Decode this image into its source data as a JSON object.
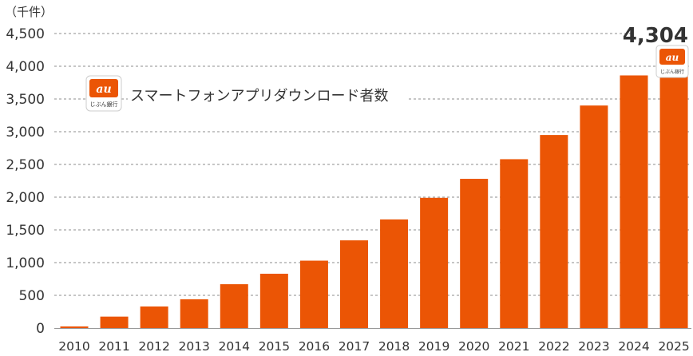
{
  "chart_data": {
    "type": "bar",
    "unit_label": "（千件）",
    "legend_label": "スマートフォンアプリダウンロード者数",
    "logo": {
      "brand": "au",
      "sub": "じぶん銀行",
      "icon": "au-jibun-bank-logo-icon"
    },
    "categories": [
      "2010",
      "2011",
      "2012",
      "2013",
      "2014",
      "2015",
      "2016",
      "2017",
      "2018",
      "2019",
      "2020",
      "2021",
      "2022",
      "2023",
      "2024",
      "2025"
    ],
    "values": [
      25,
      175,
      330,
      440,
      670,
      830,
      1030,
      1340,
      1660,
      1990,
      2280,
      2580,
      2950,
      3400,
      3860,
      4304
    ],
    "highlight": {
      "label": "4,304",
      "category": "2025"
    },
    "ylim": [
      0,
      4500
    ],
    "yticks": [
      "0",
      "500",
      "1,000",
      "1,500",
      "2,000",
      "2,500",
      "3,000",
      "3,500",
      "4,000",
      "4,500"
    ],
    "grid": true,
    "bar_color": "#EB5505"
  }
}
